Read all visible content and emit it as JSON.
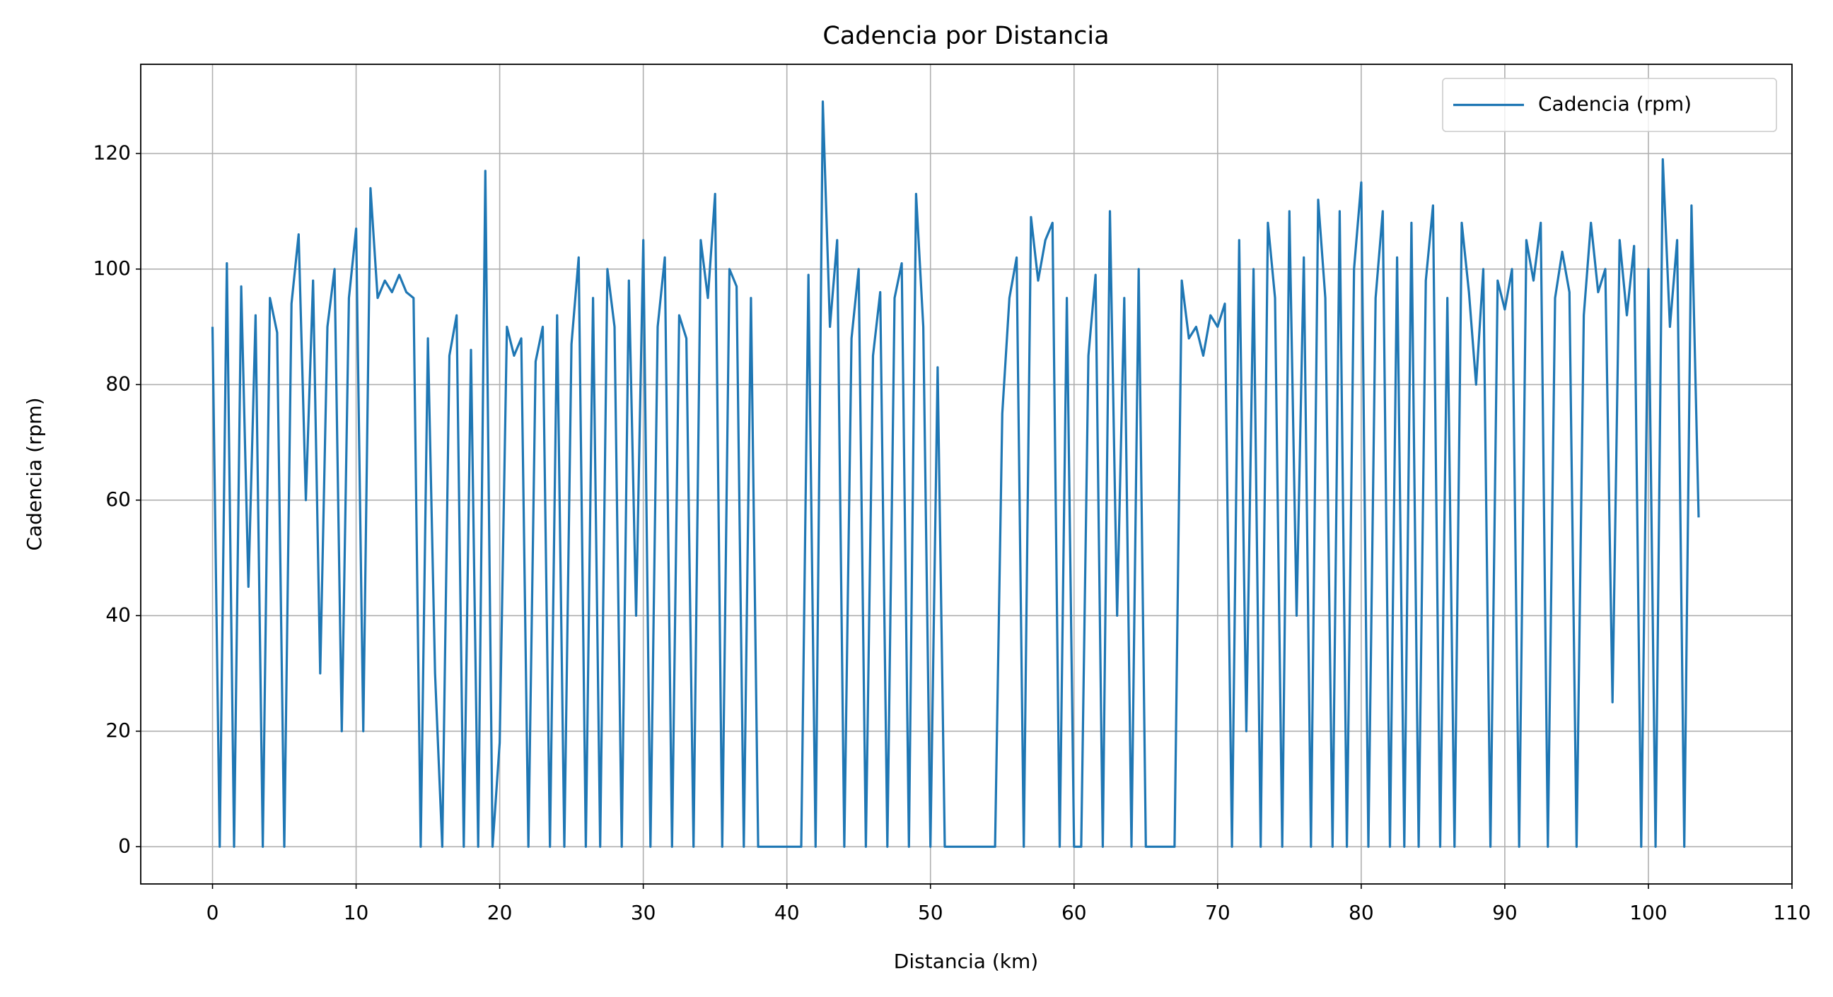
{
  "chart_data": {
    "type": "line",
    "title": "Cadencia por Distancia",
    "xlabel": "Distancia (km)",
    "ylabel": "Cadencia (rpm)",
    "xlim": [
      -5,
      110
    ],
    "ylim": [
      -6.45,
      135.45
    ],
    "xticks": [
      0,
      10,
      20,
      30,
      40,
      50,
      60,
      70,
      80,
      90,
      100,
      110
    ],
    "yticks": [
      0,
      20,
      40,
      60,
      80,
      100,
      120
    ],
    "grid": true,
    "legend": "upper right",
    "x": [
      0,
      0.5,
      1,
      1.5,
      2,
      2.5,
      3,
      3.5,
      4,
      4.5,
      5,
      5.5,
      6,
      6.5,
      7,
      7.5,
      8,
      8.5,
      9,
      9.5,
      10,
      10.5,
      11,
      11.5,
      12,
      12.5,
      13,
      13.5,
      14,
      14.5,
      15,
      15.5,
      16,
      16.5,
      17,
      17.5,
      18,
      18.5,
      19,
      19.5,
      20,
      20.5,
      21,
      21.5,
      22,
      22.5,
      23,
      23.5,
      24,
      24.5,
      25,
      25.5,
      26,
      26.5,
      27,
      27.5,
      28,
      28.5,
      29,
      29.5,
      30,
      30.5,
      31,
      31.5,
      32,
      32.5,
      33,
      33.5,
      34,
      34.5,
      35,
      35.5,
      36,
      36.5,
      37,
      37.5,
      38,
      38.5,
      39,
      39.5,
      40,
      40.5,
      41,
      41.5,
      42,
      42.5,
      43,
      43.5,
      44,
      44.5,
      45,
      45.5,
      46,
      46.5,
      47,
      47.5,
      48,
      48.5,
      49,
      49.5,
      50,
      50.5,
      51,
      51.5,
      52,
      52.5,
      53,
      53.5,
      54,
      54.5,
      55,
      55.5,
      56,
      56.5,
      57,
      57.5,
      58,
      58.5,
      59,
      59.5,
      60,
      60.5,
      61,
      61.5,
      62,
      62.5,
      63,
      63.5,
      64,
      64.5,
      65,
      65.5,
      66,
      66.5,
      67,
      67.5,
      68,
      68.5,
      69,
      69.5,
      70,
      70.5,
      71,
      71.5,
      72,
      72.5,
      73,
      73.5,
      74,
      74.5,
      75,
      75.5,
      76,
      76.5,
      77,
      77.5,
      78,
      78.5,
      79,
      79.5,
      80,
      80.5,
      81,
      81.5,
      82,
      82.5,
      83,
      83.5,
      84,
      84.5,
      85,
      85.5,
      86,
      86.5,
      87,
      87.5,
      88,
      88.5,
      89,
      89.5,
      90,
      90.5,
      91,
      91.5,
      92,
      92.5,
      93,
      93.5,
      94,
      94.5,
      95,
      95.5,
      96,
      96.5,
      97,
      97.5,
      98,
      98.5,
      99,
      99.5,
      100,
      100.5,
      101,
      101.5,
      102,
      102.5,
      103,
      103.5
    ],
    "series": [
      {
        "name": "Cadencia (rpm)",
        "color": "#1f77b4",
        "values": [
          90,
          0,
          101,
          0,
          97,
          45,
          92,
          0,
          95,
          89,
          0,
          94,
          106,
          60,
          98,
          30,
          90,
          100,
          20,
          95,
          107,
          20,
          114,
          95,
          98,
          96,
          99,
          96,
          95,
          0,
          88,
          30,
          0,
          85,
          92,
          0,
          86,
          0,
          117,
          0,
          18,
          90,
          85,
          88,
          0,
          84,
          90,
          0,
          92,
          0,
          87,
          102,
          0,
          95,
          0,
          100,
          90,
          0,
          98,
          40,
          105,
          0,
          90,
          102,
          0,
          92,
          88,
          0,
          105,
          95,
          113,
          0,
          100,
          97,
          0,
          95,
          0,
          0,
          0,
          0,
          0,
          0,
          0,
          99,
          0,
          129,
          90,
          105,
          0,
          88,
          100,
          0,
          85,
          96,
          0,
          95,
          101,
          0,
          113,
          90,
          0,
          83,
          0,
          0,
          0,
          0,
          0,
          0,
          0,
          0,
          75,
          95,
          102,
          0,
          109,
          98,
          105,
          108,
          0,
          95,
          0,
          0,
          85,
          99,
          0,
          110,
          40,
          95,
          0,
          100,
          0,
          0,
          0,
          0,
          0,
          98,
          88,
          90,
          85,
          92,
          90,
          94,
          0,
          105,
          20,
          100,
          0,
          108,
          95,
          0,
          110,
          40,
          102,
          0,
          112,
          95,
          0,
          110,
          0,
          100,
          115,
          0,
          95,
          110,
          0,
          102,
          0,
          108,
          0,
          98,
          111,
          0,
          95,
          0,
          108,
          96,
          80,
          100,
          0,
          98,
          93,
          100,
          0,
          105,
          98,
          108,
          0,
          95,
          103,
          96,
          0,
          92,
          108,
          96,
          100,
          25,
          105,
          92,
          104,
          0,
          100,
          0,
          119,
          90,
          105,
          0,
          111,
          57
        ]
      }
    ]
  }
}
